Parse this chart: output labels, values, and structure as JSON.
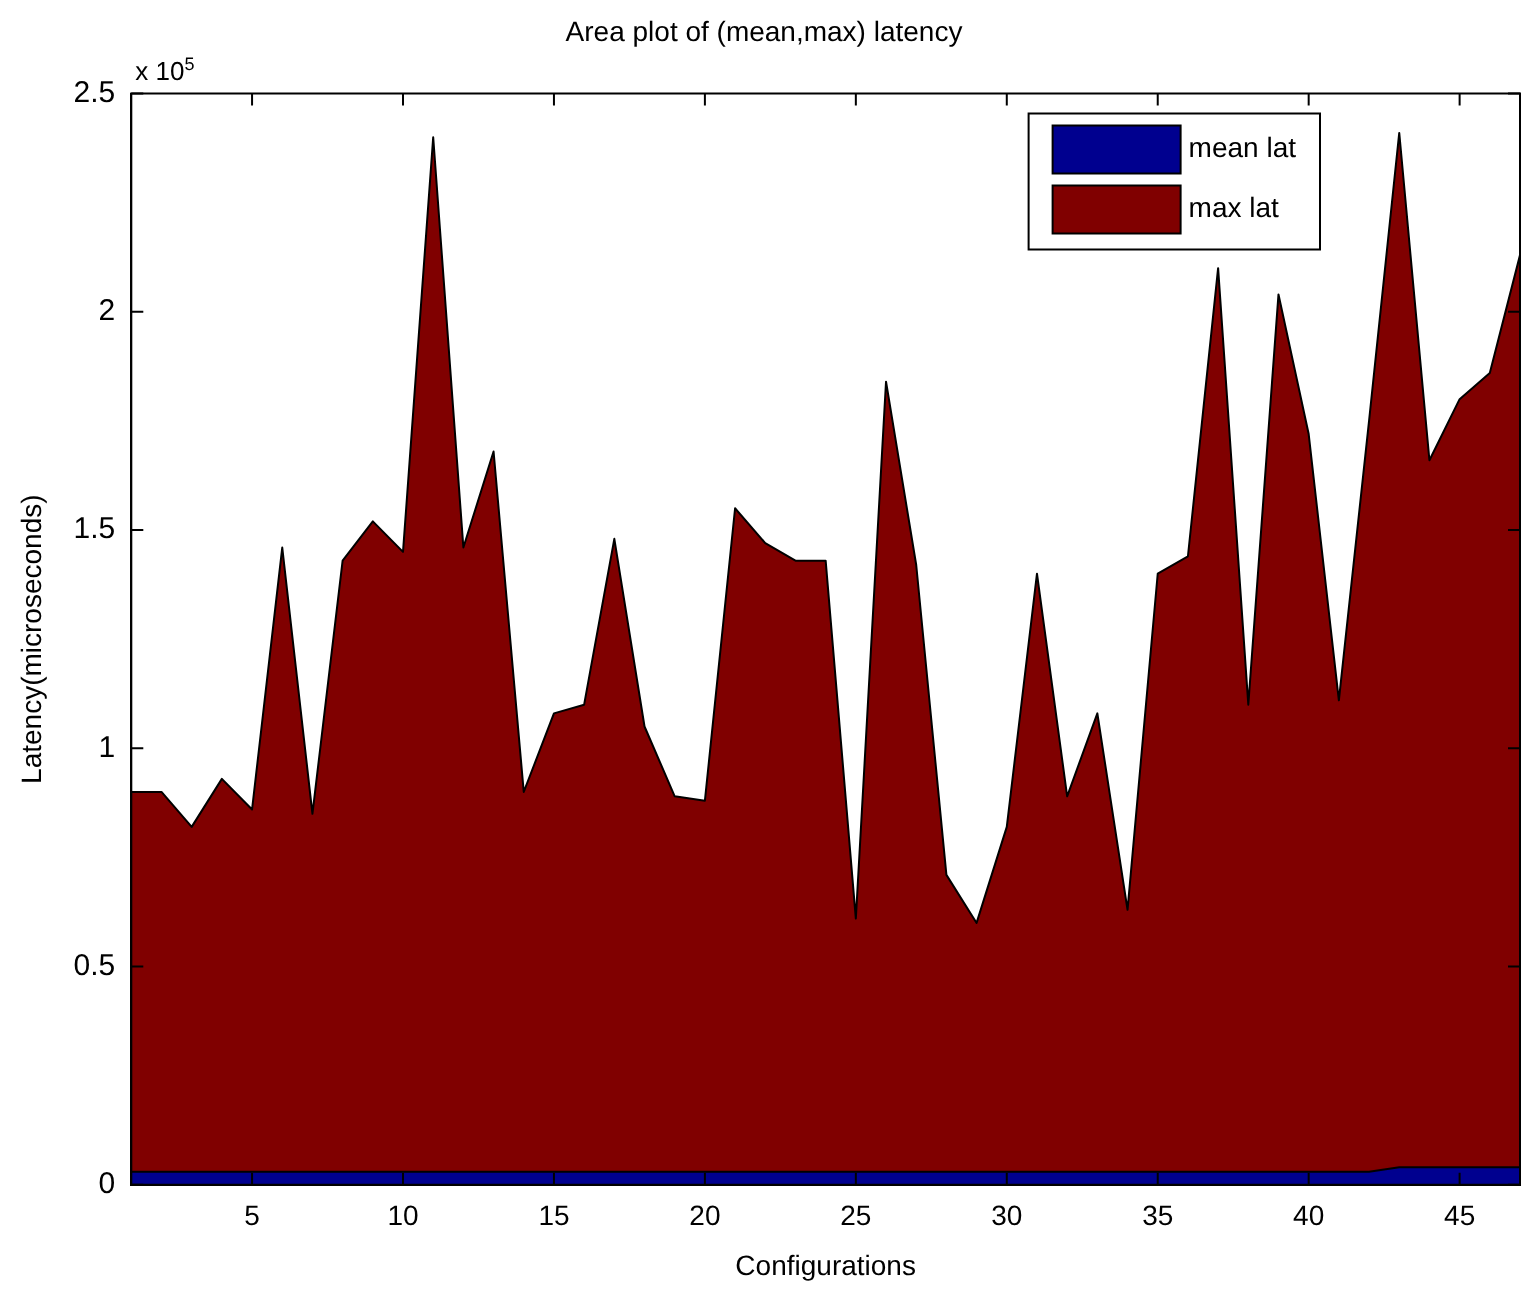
{
  "chart_data": {
    "type": "area",
    "title": "Area plot of (mean,max) latency",
    "xlabel": "Configurations",
    "ylabel": "Latency(microseconds)",
    "annotations": [
      "x 10$^{5}$"
    ],
    "x": [
      1,
      2,
      3,
      4,
      5,
      6,
      7,
      8,
      9,
      10,
      11,
      12,
      13,
      14,
      15,
      16,
      17,
      18,
      19,
      20,
      21,
      22,
      23,
      24,
      25,
      26,
      27,
      28,
      29,
      30,
      31,
      32,
      33,
      34,
      35,
      36,
      37,
      38,
      39,
      40,
      41,
      42,
      43,
      44,
      45,
      46,
      47
    ],
    "stacked": true,
    "series": [
      {
        "name": "mean lat",
        "color": "#00008f",
        "values": [
          0.03,
          0.03,
          0.03,
          0.03,
          0.03,
          0.03,
          0.03,
          0.03,
          0.03,
          0.03,
          0.03,
          0.03,
          0.03,
          0.03,
          0.03,
          0.03,
          0.03,
          0.03,
          0.03,
          0.03,
          0.03,
          0.03,
          0.03,
          0.03,
          0.03,
          0.03,
          0.03,
          0.03,
          0.03,
          0.03,
          0.03,
          0.03,
          0.03,
          0.03,
          0.03,
          0.03,
          0.03,
          0.03,
          0.03,
          0.03,
          0.03,
          0.03,
          0.04,
          0.04,
          0.04,
          0.04,
          0.04
        ]
      },
      {
        "name": "max lat",
        "color": "#800000",
        "values": [
          0.87,
          0.87,
          0.79,
          0.9,
          0.83,
          1.43,
          0.82,
          1.4,
          1.49,
          1.42,
          2.37,
          1.43,
          1.65,
          0.87,
          1.05,
          1.07,
          1.45,
          1.02,
          0.86,
          0.85,
          1.52,
          1.44,
          1.4,
          1.4,
          0.58,
          1.81,
          1.39,
          0.68,
          0.57,
          0.79,
          1.37,
          0.86,
          1.05,
          0.6,
          1.37,
          1.41,
          2.07,
          1.07,
          2.01,
          1.69,
          1.08,
          1.72,
          2.37,
          1.62,
          1.76,
          1.82,
          2.09
        ]
      }
    ],
    "xlim": [
      1,
      47
    ],
    "xticks": [
      5,
      10,
      15,
      20,
      25,
      30,
      35,
      40,
      45
    ],
    "ylim": [
      0,
      2.5
    ],
    "yticks": [
      0,
      0.5,
      1,
      1.5,
      2,
      2.5
    ],
    "legend": "top right"
  }
}
